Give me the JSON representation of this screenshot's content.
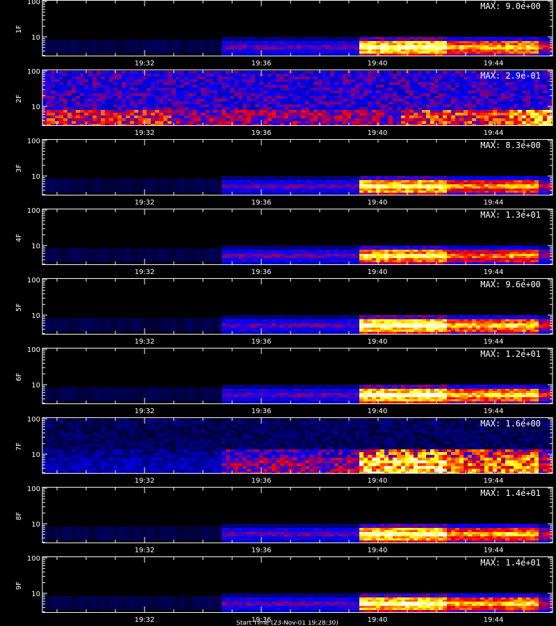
{
  "figure": {
    "footer_text": "Start Time (23-Nov-01 19:28:30)"
  },
  "chart_data": {
    "type": "heatmap",
    "colormap": [
      "#000000",
      "#0000ff",
      "#ff0000",
      "#ffff00",
      "#ffffff"
    ],
    "x_tick_labels": [
      "19:32",
      "19:36",
      "19:40",
      "19:44"
    ],
    "y_tick_labels": [
      "100",
      "10"
    ],
    "y_scale": "log",
    "panels": [
      {
        "name": "1F",
        "max_label": "MAX: 9.0e+00",
        "bands": [
          {
            "from": 0.0,
            "to": 0.35,
            "level": 0.03
          },
          {
            "from": 0.35,
            "to": 0.62,
            "level": 0.35
          },
          {
            "from": 0.62,
            "to": 0.79,
            "level": 1.0
          },
          {
            "from": 0.79,
            "to": 0.9,
            "level": 0.72
          },
          {
            "from": 0.9,
            "to": 0.97,
            "level": 0.8
          },
          {
            "from": 0.97,
            "to": 1.0,
            "level": 0.5
          }
        ]
      },
      {
        "name": "2F",
        "max_label": "MAX: 2.9e-01",
        "noisy": true,
        "bands": [
          {
            "from": 0.0,
            "to": 0.25,
            "level": 0.55
          },
          {
            "from": 0.25,
            "to": 0.7,
            "level": 0.45
          },
          {
            "from": 0.7,
            "to": 0.9,
            "level": 0.6
          },
          {
            "from": 0.9,
            "to": 1.0,
            "level": 0.8
          }
        ]
      },
      {
        "name": "3F",
        "max_label": "MAX: 8.3e+00",
        "bands": [
          {
            "from": 0.0,
            "to": 0.35,
            "level": 0.03
          },
          {
            "from": 0.35,
            "to": 0.62,
            "level": 0.35
          },
          {
            "from": 0.62,
            "to": 0.79,
            "level": 0.9
          },
          {
            "from": 0.79,
            "to": 0.9,
            "level": 0.65
          },
          {
            "from": 0.9,
            "to": 0.97,
            "level": 0.72
          },
          {
            "from": 0.97,
            "to": 1.0,
            "level": 0.45
          }
        ]
      },
      {
        "name": "4F",
        "max_label": "MAX: 1.3e+01",
        "bands": [
          {
            "from": 0.0,
            "to": 0.35,
            "level": 0.03
          },
          {
            "from": 0.35,
            "to": 0.62,
            "level": 0.35
          },
          {
            "from": 0.62,
            "to": 0.79,
            "level": 0.85
          },
          {
            "from": 0.79,
            "to": 0.9,
            "level": 0.6
          },
          {
            "from": 0.9,
            "to": 0.97,
            "level": 0.68
          },
          {
            "from": 0.97,
            "to": 1.0,
            "level": 0.4
          }
        ]
      },
      {
        "name": "5F",
        "max_label": "MAX: 9.6e+00",
        "bands": [
          {
            "from": 0.0,
            "to": 0.35,
            "level": 0.03
          },
          {
            "from": 0.35,
            "to": 0.62,
            "level": 0.35
          },
          {
            "from": 0.62,
            "to": 0.79,
            "level": 1.0
          },
          {
            "from": 0.79,
            "to": 0.9,
            "level": 0.75
          },
          {
            "from": 0.9,
            "to": 0.97,
            "level": 0.8
          },
          {
            "from": 0.97,
            "to": 1.0,
            "level": 0.5
          }
        ]
      },
      {
        "name": "6F",
        "max_label": "MAX: 1.2e+01",
        "bands": [
          {
            "from": 0.0,
            "to": 0.35,
            "level": 0.03
          },
          {
            "from": 0.35,
            "to": 0.62,
            "level": 0.35
          },
          {
            "from": 0.62,
            "to": 0.79,
            "level": 1.0
          },
          {
            "from": 0.79,
            "to": 0.9,
            "level": 0.78
          },
          {
            "from": 0.9,
            "to": 0.97,
            "level": 0.82
          },
          {
            "from": 0.97,
            "to": 1.0,
            "level": 0.5
          }
        ]
      },
      {
        "name": "7F",
        "max_label": "MAX: 1.6e+00",
        "noisy": true,
        "bands": [
          {
            "from": 0.0,
            "to": 0.35,
            "level": 0.2
          },
          {
            "from": 0.35,
            "to": 0.62,
            "level": 0.45
          },
          {
            "from": 0.62,
            "to": 0.79,
            "level": 0.9
          },
          {
            "from": 0.79,
            "to": 0.9,
            "level": 0.7
          },
          {
            "from": 0.9,
            "to": 0.97,
            "level": 0.75
          },
          {
            "from": 0.97,
            "to": 1.0,
            "level": 0.5
          }
        ]
      },
      {
        "name": "8F",
        "max_label": "MAX: 1.4e+01",
        "bands": [
          {
            "from": 0.0,
            "to": 0.35,
            "level": 0.03
          },
          {
            "from": 0.35,
            "to": 0.62,
            "level": 0.35
          },
          {
            "from": 0.62,
            "to": 0.79,
            "level": 0.95
          },
          {
            "from": 0.79,
            "to": 0.9,
            "level": 0.7
          },
          {
            "from": 0.9,
            "to": 0.97,
            "level": 0.78
          },
          {
            "from": 0.97,
            "to": 1.0,
            "level": 0.45
          }
        ]
      },
      {
        "name": "9F",
        "max_label": "MAX: 1.4e+01",
        "bands": [
          {
            "from": 0.0,
            "to": 0.35,
            "level": 0.03
          },
          {
            "from": 0.35,
            "to": 0.62,
            "level": 0.35
          },
          {
            "from": 0.62,
            "to": 0.79,
            "level": 0.95
          },
          {
            "from": 0.79,
            "to": 0.9,
            "level": 0.72
          },
          {
            "from": 0.9,
            "to": 0.97,
            "level": 0.8
          },
          {
            "from": 0.97,
            "to": 1.0,
            "level": 0.45
          }
        ]
      }
    ]
  }
}
